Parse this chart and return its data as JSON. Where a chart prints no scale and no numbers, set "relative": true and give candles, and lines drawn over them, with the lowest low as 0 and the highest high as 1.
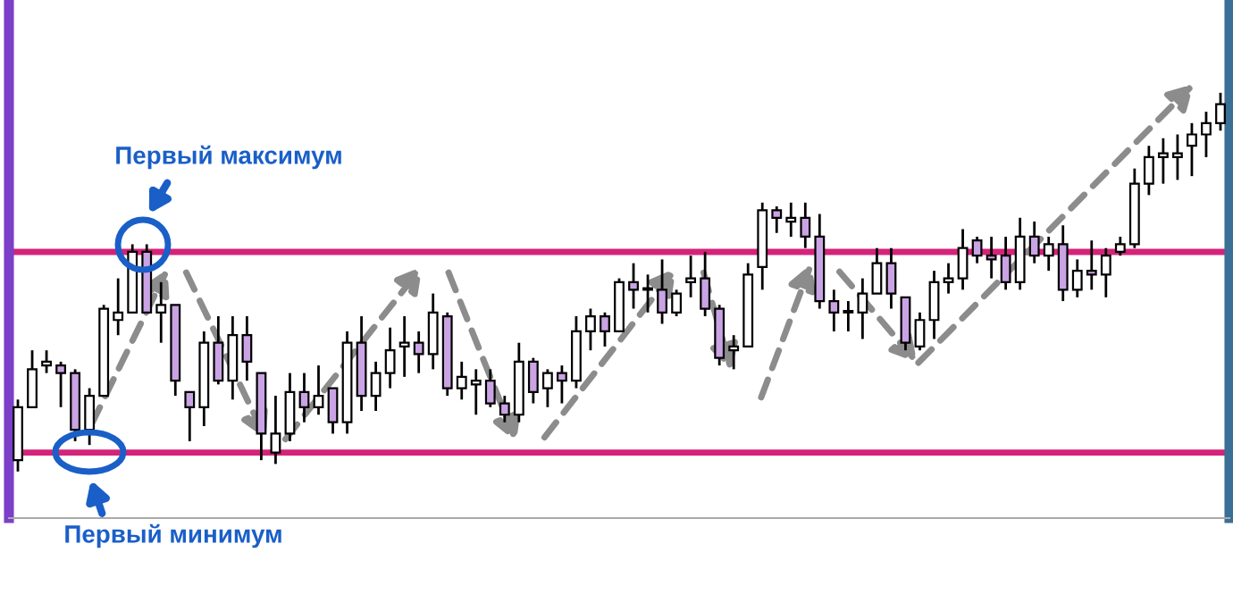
{
  "chart_data": {
    "type": "candlestick",
    "relative": true,
    "categories": [
      null,
      null,
      null,
      null,
      null,
      null,
      null,
      null,
      null,
      null,
      null,
      null,
      null,
      null,
      null,
      null,
      null,
      null,
      null,
      null,
      null,
      null,
      null,
      null,
      null,
      null,
      null,
      null,
      null,
      null,
      null,
      null,
      null,
      null,
      null,
      null,
      null,
      null,
      null,
      null,
      null,
      null,
      null,
      null,
      null,
      null,
      null,
      null,
      null,
      null,
      null,
      null,
      null,
      null,
      null,
      null,
      null,
      null,
      null,
      null,
      null,
      null,
      null,
      null,
      null,
      null,
      null,
      null,
      null,
      null,
      null,
      null,
      null,
      null,
      null,
      null,
      null,
      null,
      null,
      null,
      null,
      null,
      null,
      null,
      null
    ],
    "ohlc": [
      [
        0.03,
        0.19,
        0,
        0.17
      ],
      [
        0.17,
        0.32,
        0.17,
        0.27
      ],
      [
        0.28,
        0.32,
        0.26,
        0.29
      ],
      [
        0.28,
        0.29,
        0.17,
        0.26
      ],
      [
        0.26,
        0.27,
        0.08,
        0.11
      ],
      [
        0.11,
        0.22,
        0.07,
        0.2
      ],
      [
        0.2,
        0.44,
        0.2,
        0.43
      ],
      [
        0.4,
        0.51,
        0.36,
        0.42
      ],
      [
        0.42,
        0.6,
        0.42,
        0.58
      ],
      [
        0.58,
        0.6,
        0.42,
        0.42
      ],
      [
        0.42,
        0.5,
        0.34,
        0.44
      ],
      [
        0.44,
        0.44,
        0.2,
        0.24
      ],
      [
        0.21,
        0.21,
        0.08,
        0.17
      ],
      [
        0.17,
        0.37,
        0.12,
        0.34
      ],
      [
        0.34,
        0.41,
        0.23,
        0.24
      ],
      [
        0.24,
        0.41,
        0.19,
        0.36
      ],
      [
        0.36,
        0.41,
        0.24,
        0.29
      ],
      [
        0.26,
        0.26,
        0.03,
        0.1
      ],
      [
        0.05,
        0.2,
        0.02,
        0.1
      ],
      [
        0.1,
        0.26,
        0.08,
        0.21
      ],
      [
        0.21,
        0.26,
        0.13,
        0.17
      ],
      [
        0.17,
        0.28,
        0.15,
        0.2
      ],
      [
        0.22,
        0.22,
        0.1,
        0.13
      ],
      [
        0.13,
        0.37,
        0.1,
        0.34
      ],
      [
        0.34,
        0.41,
        0.16,
        0.2
      ],
      [
        0.2,
        0.29,
        0.16,
        0.26
      ],
      [
        0.26,
        0.38,
        0.22,
        0.32
      ],
      [
        0.33,
        0.41,
        0.25,
        0.34
      ],
      [
        0.34,
        0.37,
        0.26,
        0.31
      ],
      [
        0.31,
        0.47,
        0.27,
        0.42
      ],
      [
        0.41,
        0.42,
        0.2,
        0.22
      ],
      [
        0.22,
        0.29,
        0.19,
        0.25
      ],
      [
        0.23,
        0.27,
        0.15,
        0.24
      ],
      [
        0.24,
        0.27,
        0.17,
        0.18
      ],
      [
        0.18,
        0.2,
        0.13,
        0.15
      ],
      [
        0.15,
        0.34,
        0.13,
        0.29
      ],
      [
        0.29,
        0.3,
        0.18,
        0.21
      ],
      [
        0.22,
        0.27,
        0.17,
        0.26
      ],
      [
        0.26,
        0.28,
        0.18,
        0.24
      ],
      [
        0.24,
        0.41,
        0.22,
        0.37
      ],
      [
        0.37,
        0.43,
        0.32,
        0.41
      ],
      [
        0.41,
        0.42,
        0.33,
        0.37
      ],
      [
        0.37,
        0.51,
        0.37,
        0.5
      ],
      [
        0.5,
        0.55,
        0.43,
        0.48
      ],
      [
        0.48,
        0.52,
        0.42,
        0.48
      ],
      [
        0.48,
        0.56,
        0.39,
        0.42
      ],
      [
        0.42,
        0.48,
        0.41,
        0.47
      ],
      [
        0.5,
        0.57,
        0.46,
        0.51
      ],
      [
        0.51,
        0.58,
        0.41,
        0.43
      ],
      [
        0.43,
        0.44,
        0.28,
        0.3
      ],
      [
        0.32,
        0.36,
        0.27,
        0.33
      ],
      [
        0.33,
        0.55,
        0.33,
        0.52
      ],
      [
        0.54,
        0.71,
        0.48,
        0.69
      ],
      [
        0.69,
        0.7,
        0.63,
        0.67
      ],
      [
        0.66,
        0.71,
        0.62,
        0.67
      ],
      [
        0.67,
        0.71,
        0.59,
        0.62
      ],
      [
        0.62,
        0.68,
        0.43,
        0.45
      ],
      [
        0.45,
        0.48,
        0.37,
        0.42
      ],
      [
        0.42,
        0.45,
        0.37,
        0.42
      ],
      [
        0.42,
        0.51,
        0.35,
        0.47
      ],
      [
        0.47,
        0.59,
        0.47,
        0.55
      ],
      [
        0.55,
        0.59,
        0.43,
        0.47
      ],
      [
        0.46,
        0.46,
        0.32,
        0.34
      ],
      [
        0.33,
        0.42,
        0.32,
        0.4
      ],
      [
        0.4,
        0.53,
        0.35,
        0.5
      ],
      [
        0.5,
        0.55,
        0.47,
        0.51
      ],
      [
        0.51,
        0.64,
        0.48,
        0.59
      ],
      [
        0.61,
        0.62,
        0.55,
        0.57
      ],
      [
        0.57,
        0.62,
        0.51,
        0.56
      ],
      [
        0.57,
        0.62,
        0.48,
        0.5
      ],
      [
        0.5,
        0.67,
        0.48,
        0.62
      ],
      [
        0.62,
        0.66,
        0.55,
        0.57
      ],
      [
        0.57,
        0.62,
        0.53,
        0.6
      ],
      [
        0.6,
        0.65,
        0.45,
        0.48
      ],
      [
        0.48,
        0.56,
        0.46,
        0.53
      ],
      [
        0.53,
        0.61,
        0.48,
        0.52
      ],
      [
        0.52,
        0.59,
        0.46,
        0.57
      ],
      [
        0.58,
        0.62,
        0.57,
        0.6
      ],
      [
        0.6,
        0.8,
        0.59,
        0.76
      ],
      [
        0.76,
        0.86,
        0.73,
        0.83
      ],
      [
        0.83,
        0.88,
        0.76,
        0.84
      ],
      [
        0.83,
        0.89,
        0.77,
        0.84
      ],
      [
        0.86,
        0.92,
        0.78,
        0.89
      ],
      [
        0.89,
        0.95,
        0.83,
        0.92
      ],
      [
        0.92,
        1,
        0.9,
        0.97
      ]
    ],
    "colors": [
      "#ffffff",
      "#ffffff",
      "#ffffff",
      "#c9a3e3",
      "#c9a3e3",
      "#ffffff",
      "#ffffff",
      "#ffffff",
      "#ffffff",
      "#c9a3e3",
      "#ffffff",
      "#c9a3e3",
      "#c9a3e3",
      "#ffffff",
      "#c9a3e3",
      "#ffffff",
      "#c9a3e3",
      "#c9a3e3",
      "#ffffff",
      "#ffffff",
      "#c9a3e3",
      "#ffffff",
      "#c9a3e3",
      "#ffffff",
      "#c9a3e3",
      "#ffffff",
      "#ffffff",
      "#ffffff",
      "#c9a3e3",
      "#ffffff",
      "#c9a3e3",
      "#ffffff",
      "#ffffff",
      "#c9a3e3",
      "#c9a3e3",
      "#ffffff",
      "#c9a3e3",
      "#ffffff",
      "#c9a3e3",
      "#ffffff",
      "#ffffff",
      "#c9a3e3",
      "#ffffff",
      "#c9a3e3",
      "#ffffff",
      "#c9a3e3",
      "#ffffff",
      "#ffffff",
      "#c9a3e3",
      "#c9a3e3",
      "#ffffff",
      "#ffffff",
      "#ffffff",
      "#c9a3e3",
      "#ffffff",
      "#c9a3e3",
      "#c9a3e3",
      "#c9a3e3",
      "#ffffff",
      "#ffffff",
      "#ffffff",
      "#c9a3e3",
      "#c9a3e3",
      "#ffffff",
      "#ffffff",
      "#ffffff",
      "#ffffff",
      "#c9a3e3",
      "#c9a3e3",
      "#c9a3e3",
      "#ffffff",
      "#c9a3e3",
      "#ffffff",
      "#c9a3e3",
      "#ffffff",
      "#c9a3e3",
      "#ffffff",
      "#ffffff",
      "#ffffff",
      "#ffffff",
      "#ffffff",
      "#ffffff",
      "#ffffff",
      "#ffffff",
      "#ffffff"
    ],
    "ref_lines": [
      {
        "axis": "y",
        "value": 0.58,
        "label": null,
        "color": "#d4237a"
      },
      {
        "axis": "y",
        "value": 0.05,
        "label": null,
        "color": "#d4237a"
      }
    ],
    "annotations": [
      "Первый максимум",
      "Первый минимум"
    ]
  }
}
